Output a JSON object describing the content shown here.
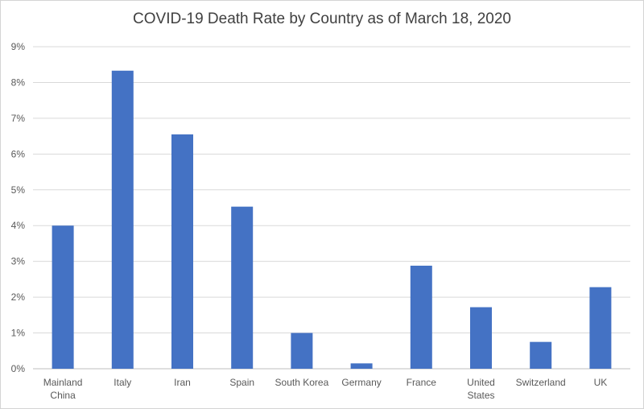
{
  "chart_data": {
    "type": "bar",
    "title": "COVID-19 Death Rate by Country as of March 18, 2020",
    "xlabel": "",
    "ylabel": "",
    "categories": [
      [
        "Mainland",
        "China"
      ],
      [
        "Italy"
      ],
      [
        "Iran"
      ],
      [
        "Spain"
      ],
      [
        "South Korea"
      ],
      [
        "Germany"
      ],
      [
        "France"
      ],
      [
        "United",
        "States"
      ],
      [
        "Switzerland"
      ],
      [
        "UK"
      ]
    ],
    "values": [
      4.0,
      8.33,
      6.55,
      4.53,
      1.0,
      0.15,
      2.88,
      1.72,
      0.75,
      2.28
    ],
    "ylim": [
      0,
      9
    ],
    "yticks": [
      "0%",
      "1%",
      "2%",
      "3%",
      "4%",
      "5%",
      "6%",
      "7%",
      "8%",
      "9%"
    ],
    "grid": true,
    "legend": "none",
    "colors": {
      "bar": "#4472C4",
      "grid": "#d9d9d9",
      "text": "#595959"
    }
  }
}
